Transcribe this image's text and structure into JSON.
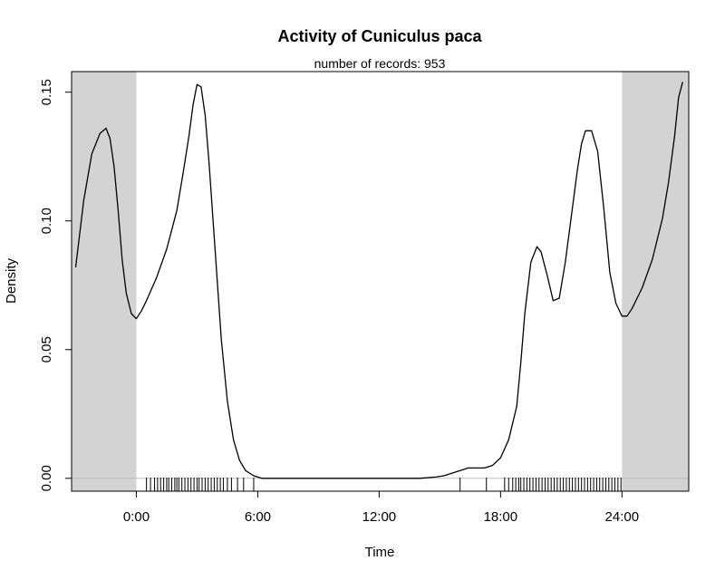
{
  "chart_data": {
    "type": "line",
    "title": "Activity of Cuniculus paca",
    "subtitle": "number of records: 953",
    "xlabel": "Time",
    "ylabel": "Density",
    "xlim": [
      -3.2,
      27.3
    ],
    "ylim": [
      -0.005,
      0.158
    ],
    "x_ticks": [
      0,
      6,
      12,
      18,
      24
    ],
    "x_tick_labels": [
      "0:00",
      "6:00",
      "12:00",
      "18:00",
      "24:00"
    ],
    "y_ticks": [
      0.0,
      0.05,
      0.1,
      0.15
    ],
    "y_tick_labels": [
      "0.00",
      "0.05",
      "0.10",
      "0.15"
    ],
    "shaded_ranges": [
      [
        -3.2,
        0
      ],
      [
        24,
        27.3
      ]
    ],
    "shade_color": "#d3d3d3",
    "baseline_y": 0,
    "series": [
      {
        "x": [
          -3.0,
          -2.6,
          -2.2,
          -1.8,
          -1.5,
          -1.3,
          -1.1,
          -0.9,
          -0.7,
          -0.5,
          -0.25,
          0.0,
          0.25,
          0.5,
          1.0,
          1.5,
          2.0,
          2.3,
          2.6,
          2.8,
          3.0,
          3.2,
          3.4,
          3.6,
          3.9,
          4.2,
          4.5,
          4.8,
          5.1,
          5.4,
          5.8,
          6.2,
          6.8,
          7.5,
          9,
          12,
          14,
          14.8,
          15.2,
          15.6,
          16.0,
          16.4,
          16.8,
          17.2,
          17.6,
          18.0,
          18.4,
          18.8,
          19.0,
          19.2,
          19.5,
          19.8,
          20.0,
          20.3,
          20.6,
          20.9,
          21.2,
          21.5,
          21.8,
          22.0,
          22.2,
          22.5,
          22.8,
          23.1,
          23.4,
          23.7,
          24.0,
          24.25,
          24.5,
          25.0,
          25.5,
          26.0,
          26.3,
          26.6,
          26.8,
          27.0
        ],
        "y": [
          0.082,
          0.108,
          0.126,
          0.134,
          0.136,
          0.132,
          0.121,
          0.104,
          0.085,
          0.072,
          0.064,
          0.062,
          0.065,
          0.069,
          0.078,
          0.089,
          0.104,
          0.118,
          0.133,
          0.145,
          0.153,
          0.152,
          0.141,
          0.122,
          0.088,
          0.054,
          0.03,
          0.015,
          0.007,
          0.003,
          0.001,
          0.0,
          0.0,
          0.0,
          0.0,
          0.0,
          0.0,
          0.0005,
          0.001,
          0.002,
          0.003,
          0.004,
          0.004,
          0.004,
          0.005,
          0.008,
          0.015,
          0.028,
          0.045,
          0.064,
          0.084,
          0.09,
          0.088,
          0.079,
          0.069,
          0.07,
          0.084,
          0.102,
          0.12,
          0.13,
          0.135,
          0.135,
          0.127,
          0.105,
          0.08,
          0.068,
          0.063,
          0.063,
          0.066,
          0.074,
          0.085,
          0.101,
          0.115,
          0.133,
          0.148,
          0.154
        ]
      }
    ],
    "rug_x": [
      0.5,
      0.7,
      0.9,
      1.05,
      1.2,
      1.35,
      1.5,
      1.6,
      1.75,
      1.9,
      2.0,
      2.1,
      2.25,
      2.4,
      2.55,
      2.7,
      2.85,
      3.0,
      3.1,
      3.25,
      3.4,
      3.55,
      3.7,
      3.85,
      4.0,
      4.15,
      4.3,
      4.5,
      4.7,
      5.0,
      5.3,
      5.8,
      16.0,
      17.3,
      18.2,
      18.4,
      18.6,
      18.75,
      18.9,
      19.0,
      19.15,
      19.3,
      19.45,
      19.6,
      19.75,
      19.9,
      20.05,
      20.2,
      20.35,
      20.5,
      20.65,
      20.8,
      20.95,
      21.1,
      21.25,
      21.4,
      21.55,
      21.7,
      21.85,
      22.0,
      22.15,
      22.3,
      22.45,
      22.6,
      22.75,
      22.9,
      23.05,
      23.2,
      23.35,
      23.5,
      23.65,
      23.8,
      23.95
    ]
  }
}
